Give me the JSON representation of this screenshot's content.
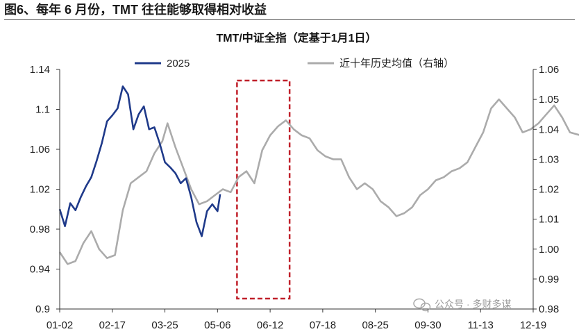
{
  "figure_title": "图6、每年 6 月份，TMT 往往能够取得相对收益",
  "watermark": "公众号 · 多财多谋",
  "colors": {
    "series_2025": "#1f3a8a",
    "series_hist": "#ababab",
    "highlight_box": "#c0202a",
    "axis": "#333333"
  },
  "chart_data": {
    "type": "line",
    "title": "TMT/中证全指（定基于1月1日）",
    "xlabel": "",
    "ylabel": "",
    "x_ticks": [
      "01-02",
      "02-17",
      "03-25",
      "05-06",
      "06-12",
      "07-18",
      "08-25",
      "09-30",
      "11-13",
      "12-19"
    ],
    "y_left": {
      "ticks": [
        "0.9",
        "0.94",
        "0.98",
        "1.02",
        "1.06",
        "1.1",
        "1.14"
      ],
      "range": [
        0.9,
        1.14
      ]
    },
    "y_right": {
      "ticks": [
        "0.98",
        "0.99",
        "1.00",
        "1.01",
        "1.02",
        "1.03",
        "1.04",
        "1.05",
        "1.06"
      ],
      "range": [
        0.98,
        1.06
      ]
    },
    "grid": false,
    "legend_position": "top",
    "highlight": {
      "x_range": [
        "05-20",
        "07-01"
      ],
      "style": "dashed-box"
    },
    "series": [
      {
        "name": "2025",
        "axis": "left",
        "x": [
          0,
          0.1,
          0.2,
          0.3,
          0.4,
          0.5,
          0.6,
          0.7,
          0.8,
          0.9,
          1.0,
          1.1,
          1.2,
          1.3,
          1.4,
          1.5,
          1.6,
          1.7,
          1.8,
          1.9,
          2.0,
          2.1,
          2.2,
          2.3,
          2.4,
          2.5,
          2.6,
          2.7,
          2.8,
          2.9,
          3.0,
          3.05
        ],
        "values": [
          1.0,
          0.983,
          1.006,
          0.999,
          1.012,
          1.023,
          1.032,
          1.048,
          1.066,
          1.088,
          1.094,
          1.101,
          1.123,
          1.115,
          1.08,
          1.095,
          1.103,
          1.08,
          1.082,
          1.066,
          1.047,
          1.042,
          1.036,
          1.026,
          1.031,
          1.012,
          0.987,
          0.973,
          0.998,
          1.005,
          0.998,
          1.015
        ]
      },
      {
        "name": "近十年历史均值（右轴）",
        "axis": "right",
        "x": [
          0,
          0.15,
          0.3,
          0.45,
          0.6,
          0.75,
          0.9,
          1.05,
          1.2,
          1.35,
          1.5,
          1.65,
          1.8,
          1.95,
          2.05,
          2.2,
          2.35,
          2.5,
          2.65,
          2.8,
          2.95,
          3.1,
          3.25,
          3.4,
          3.55,
          3.7,
          3.85,
          4.0,
          4.15,
          4.3,
          4.45,
          4.6,
          4.75,
          4.9,
          5.05,
          5.2,
          5.35,
          5.5,
          5.65,
          5.8,
          5.95,
          6.1,
          6.25,
          6.4,
          6.55,
          6.7,
          6.85,
          7.0,
          7.15,
          7.3,
          7.45,
          7.6,
          7.75,
          7.9,
          8.05,
          8.2,
          8.35,
          8.5,
          8.65,
          8.8,
          8.95,
          9.1,
          9.25,
          9.4,
          9.55,
          9.7,
          9.9
        ],
        "values": [
          0.999,
          0.995,
          0.996,
          1.002,
          1.006,
          1.0,
          0.997,
          0.998,
          1.013,
          1.022,
          1.024,
          1.026,
          1.032,
          1.036,
          1.042,
          1.034,
          1.027,
          1.02,
          1.015,
          1.016,
          1.018,
          1.02,
          1.019,
          1.024,
          1.026,
          1.022,
          1.033,
          1.038,
          1.041,
          1.043,
          1.04,
          1.038,
          1.037,
          1.033,
          1.031,
          1.03,
          1.03,
          1.024,
          1.02,
          1.022,
          1.02,
          1.016,
          1.014,
          1.011,
          1.012,
          1.014,
          1.018,
          1.02,
          1.023,
          1.024,
          1.026,
          1.027,
          1.029,
          1.034,
          1.039,
          1.047,
          1.05,
          1.047,
          1.044,
          1.039,
          1.04,
          1.042,
          1.045,
          1.048,
          1.044,
          1.039,
          1.038
        ]
      }
    ]
  }
}
